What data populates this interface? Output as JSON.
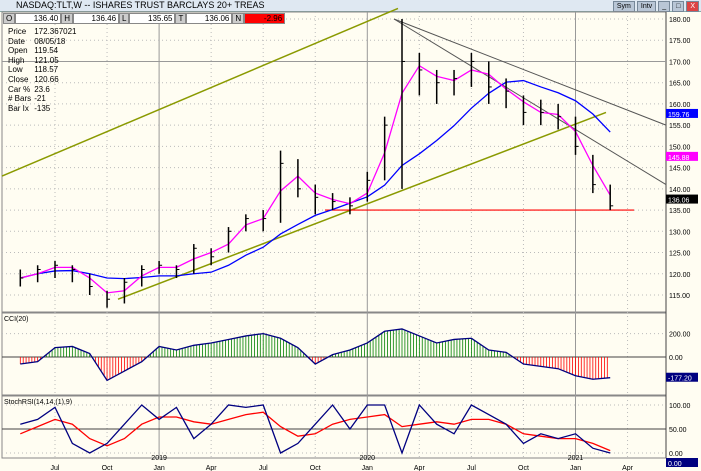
{
  "window": {
    "title": "NASDAQ:TLT,W -- ISHARES TRUST BARCLAYS 20+  TREAS",
    "buttons": [
      "Sym",
      "Intv",
      "_",
      "□",
      "X"
    ]
  },
  "quote": {
    "O": "136.40",
    "H": "136.46",
    "L": "135.65",
    "T": "136.06",
    "N": "-2.96"
  },
  "info": [
    [
      "Price",
      "172.367021"
    ],
    [
      "Date",
      "08/05/18"
    ],
    [
      "Open",
      "119.54"
    ],
    [
      "High",
      "121.05"
    ],
    [
      "Low",
      "118.57"
    ],
    [
      "Close",
      "120.66"
    ],
    [
      "Car %",
      "23.6"
    ],
    [
      "# Bars",
      "-21"
    ],
    [
      "Bar Ix",
      "-135"
    ]
  ],
  "colors": {
    "price_bars": "#000000",
    "ma_short": "#ff00ff",
    "ma_long": "#0000ff",
    "trend_channel": "#8a9a00",
    "trendlines": "#555555",
    "support": "#ff0000",
    "cci_pos": "#008000",
    "cci_neg": "#ff0000",
    "stoch": "#000080",
    "stoch_signal": "#ff0000"
  },
  "chart_data": [
    {
      "type": "bar",
      "name": "price",
      "title": "NASDAQ:TLT,W",
      "ylim": [
        112,
        182
      ],
      "yticks": [
        "180.00",
        "175.00",
        "170.00",
        "165.00",
        "160.00",
        "155.00",
        "150.00",
        "145.00",
        "140.00",
        "135.00",
        "130.00",
        "125.00",
        "120.00",
        "115.00"
      ],
      "xticks": [
        "Jul",
        "Oct",
        "Jan",
        "Apr",
        "Jul",
        "Oct",
        "Jan",
        "Apr",
        "Jul",
        "Oct",
        "Jan",
        "Apr"
      ],
      "year_labels": [
        "2019",
        "2020",
        "2021"
      ],
      "x": [
        "2018-05",
        "2018-06",
        "2018-07",
        "2018-08",
        "2018-09",
        "2018-10",
        "2018-11",
        "2018-12",
        "2019-01",
        "2019-02",
        "2019-03",
        "2019-04",
        "2019-05",
        "2019-06",
        "2019-07",
        "2019-08",
        "2019-09",
        "2019-10",
        "2019-11",
        "2019-12",
        "2020-01",
        "2020-02",
        "2020-03",
        "2020-04",
        "2020-05",
        "2020-06",
        "2020-07",
        "2020-08",
        "2020-09",
        "2020-10",
        "2020-11",
        "2020-12",
        "2021-01",
        "2021-02",
        "2021-03"
      ],
      "high": [
        121,
        122,
        123,
        122,
        120,
        116,
        119,
        122,
        123,
        122,
        127,
        126,
        131,
        134,
        135,
        149,
        147,
        141,
        139,
        138,
        144,
        157,
        180,
        172,
        168,
        168,
        172,
        170,
        166,
        162,
        161,
        160,
        157,
        148,
        141
      ],
      "low": [
        117,
        118,
        119,
        118,
        115,
        112,
        113,
        117,
        120,
        119,
        120,
        122,
        125,
        130,
        130,
        132,
        138,
        134,
        135,
        134,
        137,
        142,
        140,
        162,
        160,
        162,
        164,
        160,
        159,
        155,
        155,
        154,
        148,
        139,
        135
      ],
      "close": [
        119,
        121,
        122,
        121,
        117,
        114,
        118,
        121,
        122,
        121,
        126,
        124,
        130,
        133,
        133,
        146,
        140,
        138,
        137,
        136,
        142,
        155,
        170,
        168,
        165,
        166,
        170,
        164,
        163,
        158,
        158,
        157,
        150,
        141,
        136
      ],
      "last_labels": {
        "ma_long": "159.76",
        "ma_short": "145.88",
        "close": "136.06"
      },
      "support": 135
    },
    {
      "type": "bar",
      "name": "CCI(20)",
      "title": "CCI(20)",
      "yticks": [
        "200.00",
        "0.00"
      ],
      "last": "-177.20",
      "values": [
        -60,
        -40,
        80,
        90,
        30,
        -200,
        -120,
        -40,
        90,
        60,
        100,
        120,
        150,
        180,
        200,
        160,
        80,
        -60,
        20,
        60,
        120,
        220,
        240,
        180,
        120,
        150,
        160,
        60,
        40,
        -60,
        -80,
        -100,
        -160,
        -190,
        -177
      ]
    },
    {
      "type": "line",
      "name": "StochRSI(14,14,(1),9)",
      "title": "StochRSI(14,14,(1),9)",
      "yticks": [
        "100.00",
        "50.00",
        "0.00"
      ],
      "last": "0.00",
      "values": [
        60,
        70,
        95,
        20,
        0,
        20,
        60,
        100,
        70,
        95,
        30,
        60,
        100,
        95,
        100,
        0,
        20,
        60,
        100,
        50,
        100,
        100,
        0,
        100,
        60,
        40,
        100,
        80,
        60,
        20,
        40,
        30,
        40,
        10,
        0
      ],
      "signal": [
        40,
        55,
        70,
        60,
        30,
        15,
        30,
        60,
        75,
        75,
        65,
        60,
        70,
        80,
        85,
        55,
        35,
        40,
        60,
        70,
        75,
        80,
        55,
        60,
        65,
        60,
        70,
        70,
        60,
        40,
        35,
        30,
        30,
        20,
        5
      ]
    }
  ]
}
